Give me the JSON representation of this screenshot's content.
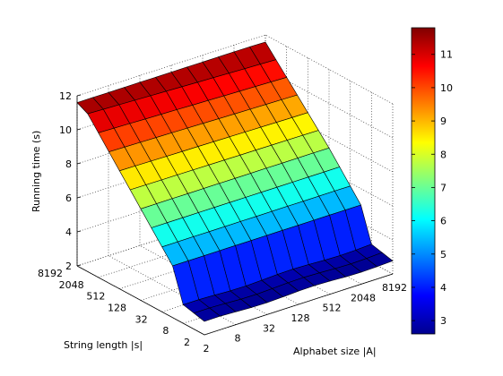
{
  "chart_data": {
    "type": "surface",
    "title": "",
    "xlabel": "Alphabet size |A|",
    "ylabel": "String length |s|",
    "zlabel": "Running time (s)",
    "x_ticks": [
      "2",
      "8",
      "32",
      "128",
      "512",
      "2048",
      "8192"
    ],
    "y_ticks": [
      "2",
      "8",
      "32",
      "128",
      "512",
      "2048",
      "8192"
    ],
    "z_ticks": [
      "2",
      "4",
      "6",
      "8",
      "10",
      "12"
    ],
    "zlim": [
      2,
      12
    ],
    "colorbar": {
      "ticks": [
        "3",
        "4",
        "5",
        "6",
        "7",
        "8",
        "9",
        "10",
        "11"
      ],
      "range": [
        2.6,
        11.8
      ],
      "colormap": "jet"
    },
    "grid": true,
    "log2_x": [
      1,
      2,
      3,
      4,
      5,
      6,
      7,
      8,
      9,
      10,
      11,
      12,
      13
    ],
    "log2_y": [
      1,
      2,
      3,
      4,
      5,
      6,
      7,
      8,
      9,
      10,
      11,
      12,
      13
    ],
    "z_description": "Running time rises roughly linearly with log string length; near-flat in alphabet size"
  },
  "colors": {
    "axis": "#000000",
    "grid": "#333333",
    "edge": "#000000"
  }
}
